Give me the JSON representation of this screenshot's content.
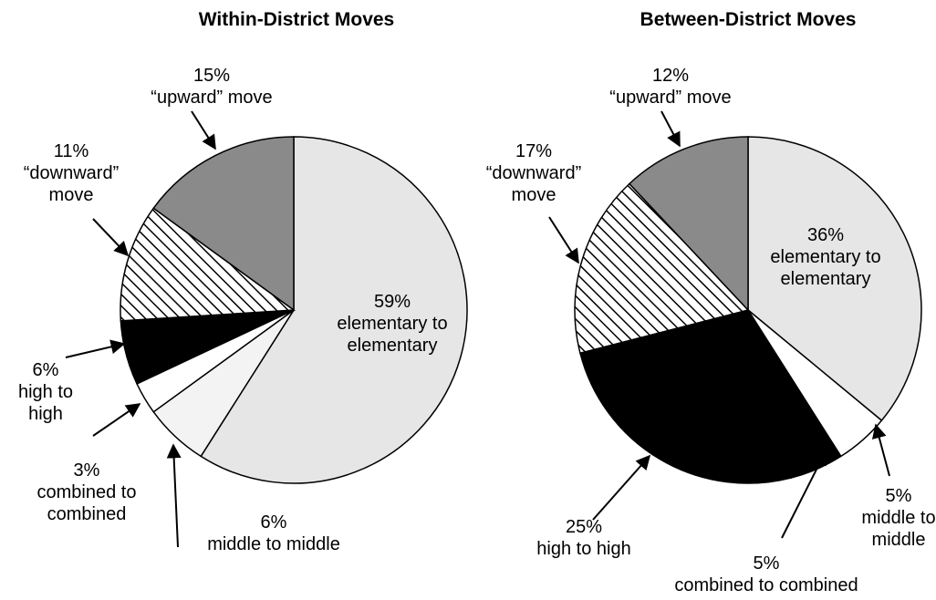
{
  "chart_data": [
    {
      "type": "pie",
      "title": "Within-District Moves",
      "categories": [
        "elementary to elementary",
        "middle to middle",
        "combined to combined",
        "high to high",
        "“downward” move",
        "“upward” move"
      ],
      "values": [
        59,
        6,
        3,
        6,
        11,
        15
      ],
      "value_labels": [
        "59%",
        "6%",
        "3%",
        "6%",
        "11%",
        "15%"
      ],
      "colors": [
        "#e6e6e6",
        "#f3f3f3",
        "#ffffff",
        "#000000",
        "hatch",
        "#8a8a8a"
      ]
    },
    {
      "type": "pie",
      "title": "Between-District Moves",
      "categories": [
        "elementary to elementary",
        "middle to middle",
        "combined to combined",
        "high to high",
        "“downward” move",
        "“upward” move"
      ],
      "values": [
        36,
        5,
        5,
        25,
        17,
        12
      ],
      "value_labels": [
        "36%",
        "5%",
        "5%",
        "25%",
        "17%",
        "12%"
      ],
      "colors": [
        "#e6e6e6",
        "#ffffff",
        "#000000",
        "#000000",
        "hatch",
        "#8a8a8a"
      ]
    }
  ]
}
